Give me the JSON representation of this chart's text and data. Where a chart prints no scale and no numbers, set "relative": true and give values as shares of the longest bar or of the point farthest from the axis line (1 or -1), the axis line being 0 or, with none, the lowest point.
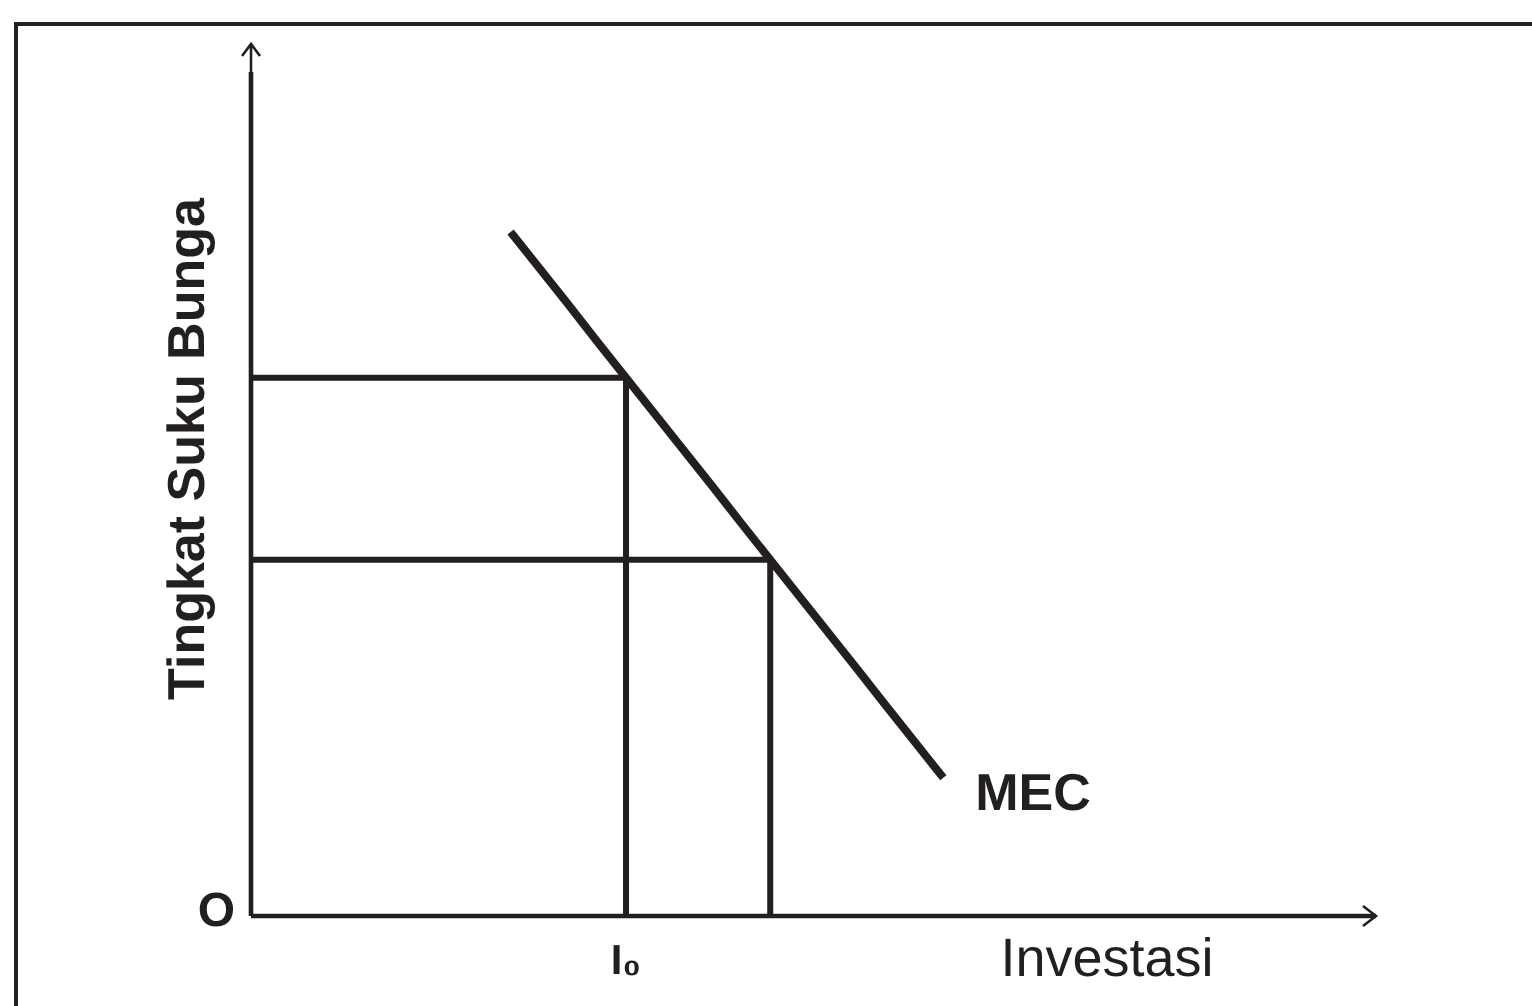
{
  "chart_data": {
    "type": "line",
    "relative": true,
    "xlabel": "Investasi",
    "ylabel": "Tingkat Suku Bunga",
    "annotations": [
      "O",
      "I₀"
    ],
    "categories": [
      null,
      null,
      null,
      null,
      null,
      null,
      null,
      null,
      null,
      null,
      null,
      null,
      null,
      null,
      null,
      null,
      null,
      null,
      null,
      null,
      null,
      null,
      null,
      null,
      null,
      null,
      null,
      null,
      null,
      null,
      null,
      null,
      null,
      null,
      null,
      null,
      null,
      null,
      null,
      null
    ],
    "series": [
      {
        "name": "MEC",
        "color": "#231f20",
        "values": [
          null,
          null,
          null,
          null,
          null,
          null,
          null,
          null,
          null,
          1,
          0.947,
          0.894,
          0.84,
          0.787,
          0.734,
          0.681,
          0.628,
          0.574,
          0.521,
          0.468,
          0.415,
          0.362,
          0.308,
          0.255,
          0.202,
          null,
          null,
          null,
          null,
          null,
          null,
          null,
          null,
          null,
          null,
          null,
          null,
          null,
          null,
          null
        ]
      },
      {
        "type": "step",
        "color": "#231f20",
        "values": [
          0.787,
          0.787,
          0.787,
          0.787,
          0.787,
          0.787,
          0.787,
          0.787,
          0.787,
          0.787,
          0.787,
          0.787,
          0.787,
          0,
          null,
          null,
          null,
          null,
          null,
          null,
          null,
          null,
          null,
          null,
          null,
          null,
          null,
          null,
          null,
          null,
          null,
          null,
          null,
          null,
          null,
          null,
          null,
          null,
          null,
          null
        ]
      },
      {
        "type": "step",
        "color": "#231f20",
        "values": [
          0.521,
          0.521,
          0.521,
          0.521,
          0.521,
          0.521,
          0.521,
          0.521,
          0.521,
          0.521,
          0.521,
          0.521,
          0.521,
          0.521,
          0.521,
          0.521,
          0.521,
          0.521,
          0,
          null,
          null,
          null,
          null,
          null,
          null,
          null,
          null,
          null,
          null,
          null,
          null,
          null,
          null,
          null,
          null,
          null,
          null,
          null,
          null,
          null
        ]
      }
    ]
  }
}
